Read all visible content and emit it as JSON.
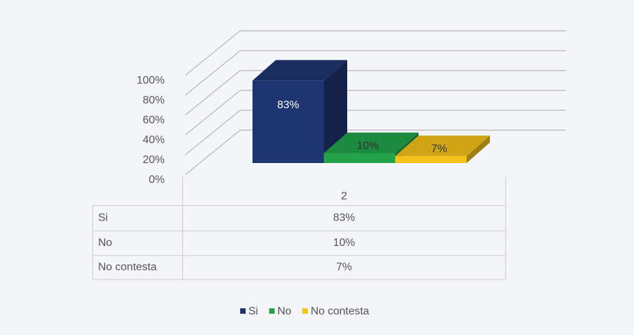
{
  "chart_data": {
    "type": "bar3d",
    "categories": [
      "2"
    ],
    "series": [
      {
        "name": "Si",
        "color": "#1f3571",
        "values": [
          83
        ],
        "value_labels": [
          "83%"
        ]
      },
      {
        "name": "No",
        "color": "#22a34a",
        "values": [
          10
        ],
        "value_labels": [
          "10%"
        ]
      },
      {
        "name": "No contesta",
        "color": "#f3c21b",
        "values": [
          7
        ],
        "value_labels": [
          "7%"
        ]
      }
    ],
    "ylim": [
      0,
      100
    ],
    "yticks": [
      {
        "value": 0,
        "label": "0%"
      },
      {
        "value": 20,
        "label": "20%"
      },
      {
        "value": 40,
        "label": "40%"
      },
      {
        "value": 60,
        "label": "60%"
      },
      {
        "value": 80,
        "label": "80%"
      },
      {
        "value": 100,
        "label": "100%"
      }
    ],
    "grid": true,
    "data_table": true,
    "legend": "bottom"
  }
}
